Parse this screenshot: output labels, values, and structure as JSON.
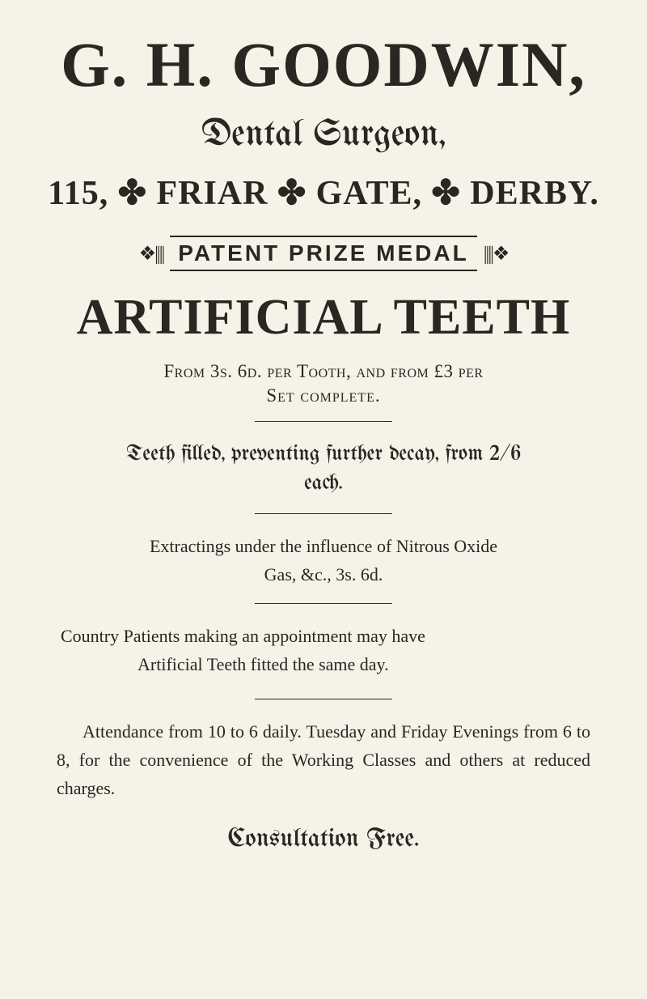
{
  "document": {
    "background_color": "#f5f2e8",
    "text_color": "#2a2622",
    "main_title": "G. H. GOODWIN,",
    "subtitle": "Dental Surgeon,",
    "address": "115, ✤ FRIAR ✤ GATE, ✤ DERBY.",
    "medal": {
      "left_ornament": "❖||||",
      "text": "PATENT PRIZE MEDAL",
      "right_ornament": "||||❖"
    },
    "headline": "ARTIFICIAL TEETH",
    "price_line": "From 3s. 6d. per Tooth, and from £3 per",
    "set_line": "Set complete.",
    "teeth_filled_line1": "Teeth filled, preventing further decay, from 2/6",
    "teeth_filled_line2": "each.",
    "extracting_line1": "Extractings under the influence of Nitrous Oxide",
    "extracting_line2": "Gas, &c., 3s. 6d.",
    "country_line1": "Country Patients making an appointment may have",
    "country_line2": "Artificial Teeth fitted the same day.",
    "attendance": "Attendance from 10 to 6 daily. Tuesday and Friday Evenings from 6 to 8, for the convenience of the Working Classes and others at reduced charges.",
    "consultation": "Consultation Free.",
    "typography": {
      "main_title_size": 78,
      "subtitle_size": 46,
      "address_size": 42,
      "medal_text_size": 28,
      "headline_size": 62,
      "body_size": 22,
      "blackletter_size": 27,
      "consultation_size": 32
    }
  }
}
